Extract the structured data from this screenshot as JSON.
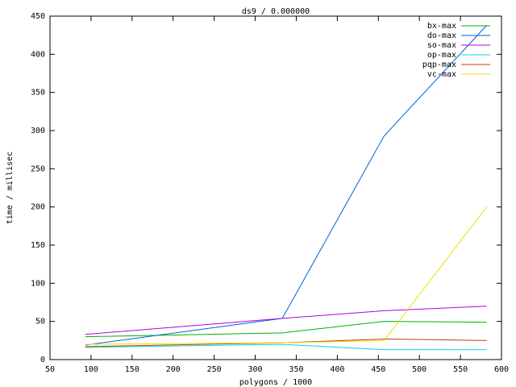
{
  "chart_data": {
    "type": "line",
    "title": "ds9 / 0.000000",
    "x_label": "polygons / 1000",
    "y_label": "time / millisec",
    "x": [
      93,
      333,
      457,
      582
    ],
    "series": [
      {
        "name": "bx-max",
        "color": "#00b000",
        "values": [
          30,
          35,
          50,
          49
        ]
      },
      {
        "name": "do-max",
        "color": "#0060e0",
        "values": [
          19,
          54,
          293,
          438
        ]
      },
      {
        "name": "so-max",
        "color": "#b000e0",
        "values": [
          33,
          54,
          64,
          70
        ]
      },
      {
        "name": "op-max",
        "color": "#00d8e8",
        "values": [
          16,
          20,
          13,
          13
        ]
      },
      {
        "name": "pqp-max",
        "color": "#c04000",
        "values": [
          17,
          22,
          27,
          25
        ]
      },
      {
        "name": "vc-max",
        "color": "#e8e000",
        "values": [
          20,
          22,
          25,
          200
        ]
      }
    ],
    "xlim": [
      50,
      600
    ],
    "xticks": [
      50,
      100,
      150,
      200,
      250,
      300,
      350,
      400,
      450,
      500,
      550,
      600
    ],
    "ylim": [
      0,
      450
    ],
    "yticks": [
      0,
      50,
      100,
      150,
      200,
      250,
      300,
      350,
      400,
      450
    ],
    "legend": "top-right"
  }
}
